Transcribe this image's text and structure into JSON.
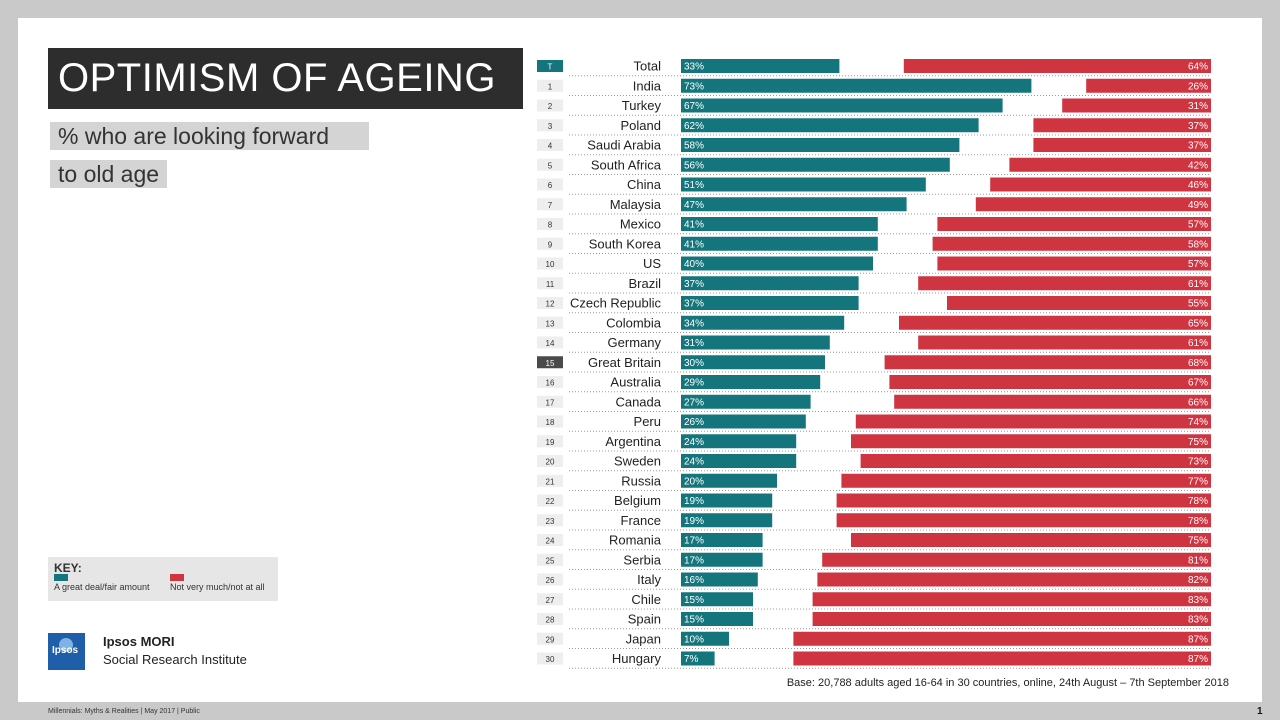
{
  "title": "OPTIMISM OF AGEING",
  "subtitle_line1": "% who are looking forward",
  "subtitle_line2": "to old age",
  "key": {
    "title": "KEY:",
    "series1_label": "A great deal/fair amount",
    "series2_label": "Not very much/not at all"
  },
  "colors": {
    "series1": "#14767c",
    "series2": "#cf3441",
    "title_bg": "#2d2d2d",
    "logo_bg": "#1f5ea8"
  },
  "org": {
    "logo_text": "Ipsos",
    "name": "Ipsos MORI",
    "subtitle": "Social Research Institute"
  },
  "footer": "Millennials: Myths & Realities | May 2017 | Public",
  "page_number": "1",
  "base_note": "Base: 20,788  adults aged 16-64  in 30 countries, online, 24th August – 7th September 2018",
  "chart_data": {
    "type": "bar",
    "orientation": "horizontal",
    "stacked": "diverging",
    "xlim": [
      0,
      100
    ],
    "highlight": [
      "Total",
      "Great Britain"
    ],
    "ranks": [
      "T",
      "1",
      "2",
      "3",
      "4",
      "5",
      "6",
      "7",
      "8",
      "9",
      "10",
      "11",
      "12",
      "13",
      "14",
      "15",
      "16",
      "17",
      "18",
      "19",
      "20",
      "21",
      "22",
      "23",
      "24",
      "25",
      "26",
      "27",
      "28",
      "29",
      "30"
    ],
    "categories": [
      "Total",
      "India",
      "Turkey",
      "Poland",
      "Saudi Arabia",
      "South Africa",
      "China",
      "Malaysia",
      "Mexico",
      "South Korea",
      "US",
      "Brazil",
      "Czech Republic",
      "Colombia",
      "Germany",
      "Great Britain",
      "Australia",
      "Canada",
      "Peru",
      "Argentina",
      "Sweden",
      "Russia",
      "Belgium",
      "France",
      "Romania",
      "Serbia",
      "Italy",
      "Chile",
      "Spain",
      "Japan",
      "Hungary"
    ],
    "series": [
      {
        "name": "A great deal/fair amount",
        "values": [
          33,
          73,
          67,
          62,
          58,
          56,
          51,
          47,
          41,
          41,
          40,
          37,
          37,
          34,
          31,
          30,
          29,
          27,
          26,
          24,
          24,
          20,
          19,
          19,
          17,
          17,
          16,
          15,
          15,
          10,
          7
        ]
      },
      {
        "name": "Not very much/not at all",
        "values": [
          64,
          26,
          31,
          37,
          37,
          42,
          46,
          49,
          57,
          58,
          57,
          61,
          55,
          65,
          61,
          68,
          67,
          66,
          74,
          75,
          73,
          77,
          78,
          78,
          75,
          81,
          82,
          83,
          83,
          87,
          87
        ]
      }
    ]
  }
}
